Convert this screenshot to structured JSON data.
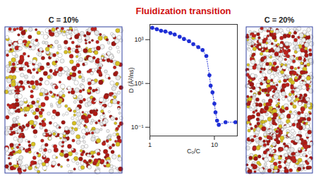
{
  "chart_data": {
    "type": "scatter",
    "title": "Fluidization transition",
    "x_label": "C₀/C",
    "y_label": "D (Å²/ns)",
    "log": true,
    "color": "#1f2fd6",
    "marker": "circle",
    "line_style": "dotted",
    "x": [
      1.09,
      1.28,
      1.49,
      1.74,
      2.08,
      2.42,
      2.9,
      3.38,
      4.04,
      4.71,
      5.62,
      6.56,
      7.5,
      8.38,
      8.75,
      9.35,
      10.0,
      10.4,
      11.0,
      11.7,
      14.9,
      21.2
    ],
    "values": [
      3480,
      2990,
      2550,
      2360,
      2020,
      1730,
      1370,
      1080,
      855,
      626,
      458,
      335,
      180,
      23.6,
      7.9,
      3.9,
      1.2,
      0.48,
      0.2,
      0.13,
      0.17,
      0.17
    ],
    "xlim": [
      1,
      22.7
    ],
    "xticks": [
      1,
      10
    ],
    "ylim": [
      0.04,
      5000
    ],
    "yticks": [
      {
        "value": 0.1,
        "label": "10⁻¹"
      },
      {
        "value": 10,
        "label": "10¹"
      },
      {
        "value": 1000,
        "label": "10³"
      }
    ]
  },
  "panels": [
    {
      "label": "C = 10%"
    },
    {
      "label": "C = 20%"
    }
  ]
}
